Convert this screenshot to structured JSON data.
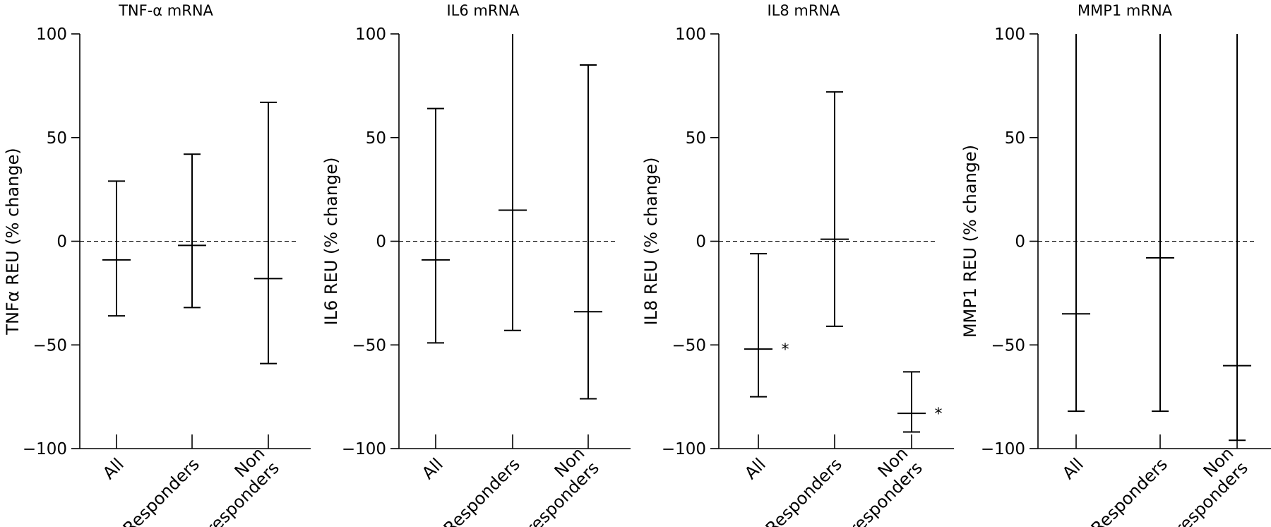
{
  "chart_data": [
    {
      "type": "errorbar",
      "title": "TNF-α mRNA",
      "ylabel": "TNFα REU (% change)",
      "xlabel": "",
      "ylim": [
        -100,
        100
      ],
      "yticks": [
        "100",
        "50",
        "0",
        "−50",
        "−100"
      ],
      "categories": [
        [
          "All"
        ],
        [
          "Responders"
        ],
        [
          "Non",
          "responders"
        ]
      ],
      "median": [
        -9,
        -2,
        -18
      ],
      "lower": [
        -36,
        -32,
        -59
      ],
      "upper": [
        29,
        42,
        67
      ],
      "significant": [
        "",
        "",
        ""
      ],
      "reference_line": 0
    },
    {
      "type": "errorbar",
      "title": "IL6 mRNA",
      "ylabel": "IL6 REU (% change)",
      "xlabel": "",
      "ylim": [
        -100,
        100
      ],
      "yticks": [
        "100",
        "50",
        "0",
        "−50",
        "−100"
      ],
      "categories": [
        [
          "All"
        ],
        [
          "Responders"
        ],
        [
          "Non",
          "responders"
        ]
      ],
      "median": [
        -9,
        15,
        -34
      ],
      "lower": [
        -49,
        -43,
        -76
      ],
      "upper": [
        64,
        100,
        85
      ],
      "significant": [
        "",
        "",
        ""
      ],
      "reference_line": 0
    },
    {
      "type": "errorbar",
      "title": "IL8 mRNA",
      "ylabel": "IL8 REU (% change)",
      "xlabel": "",
      "ylim": [
        -100,
        100
      ],
      "yticks": [
        "100",
        "50",
        "0",
        "−50",
        "−100"
      ],
      "categories": [
        [
          "All"
        ],
        [
          "Responders"
        ],
        [
          "Non",
          "responders"
        ]
      ],
      "median": [
        -52,
        1,
        -83
      ],
      "lower": [
        -75,
        -41,
        -92
      ],
      "upper": [
        -6,
        72,
        -63
      ],
      "significant": [
        "*",
        "",
        "*"
      ],
      "reference_line": 0
    },
    {
      "type": "errorbar",
      "title": "MMP1 mRNA",
      "ylabel": "MMP1 REU (% change)",
      "xlabel": "",
      "ylim": [
        -100,
        100
      ],
      "yticks": [
        "100",
        "50",
        "0",
        "−50",
        "−100"
      ],
      "categories": [
        [
          "All"
        ],
        [
          "Responders"
        ],
        [
          "Non",
          "responders"
        ]
      ],
      "median": [
        -35,
        -8,
        -60
      ],
      "lower": [
        -82,
        -82,
        -96
      ],
      "upper": [
        100,
        100,
        100
      ],
      "significant": [
        "",
        "",
        ""
      ],
      "reference_line": 0
    }
  ]
}
